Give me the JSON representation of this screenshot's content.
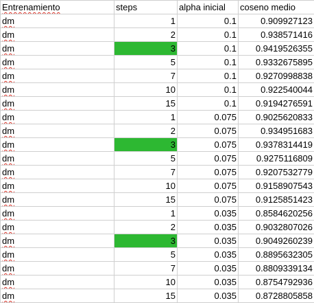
{
  "header": {
    "col1": "Entrenamiento",
    "col2": "steps",
    "col3": "alpha inicial",
    "col4": "coseno medio"
  },
  "highlight_color": "#2db832",
  "rows": [
    {
      "entrenamiento": "dm",
      "steps": "1",
      "alpha": "0.1",
      "coseno": "0.909927123",
      "highlight": false
    },
    {
      "entrenamiento": "dm",
      "steps": "2",
      "alpha": "0.1",
      "coseno": "0.938571416",
      "highlight": false
    },
    {
      "entrenamiento": "dm",
      "steps": "3",
      "alpha": "0.1",
      "coseno": "0.9419526355",
      "highlight": true
    },
    {
      "entrenamiento": "dm",
      "steps": "5",
      "alpha": "0.1",
      "coseno": "0.9332675895",
      "highlight": false
    },
    {
      "entrenamiento": "dm",
      "steps": "7",
      "alpha": "0.1",
      "coseno": "0.9270998838",
      "highlight": false
    },
    {
      "entrenamiento": "dm",
      "steps": "10",
      "alpha": "0.1",
      "coseno": "0.922540044",
      "highlight": false
    },
    {
      "entrenamiento": "dm",
      "steps": "15",
      "alpha": "0.1",
      "coseno": "0.9194276591",
      "highlight": false
    },
    {
      "entrenamiento": "dm",
      "steps": "1",
      "alpha": "0.075",
      "coseno": "0.9025620833",
      "highlight": false
    },
    {
      "entrenamiento": "dm",
      "steps": "2",
      "alpha": "0.075",
      "coseno": "0.934951683",
      "highlight": false
    },
    {
      "entrenamiento": "dm",
      "steps": "3",
      "alpha": "0.075",
      "coseno": "0.9378314419",
      "highlight": true
    },
    {
      "entrenamiento": "dm",
      "steps": "5",
      "alpha": "0.075",
      "coseno": "0.9275116809",
      "highlight": false
    },
    {
      "entrenamiento": "dm",
      "steps": "7",
      "alpha": "0.075",
      "coseno": "0.9207532779",
      "highlight": false
    },
    {
      "entrenamiento": "dm",
      "steps": "10",
      "alpha": "0.075",
      "coseno": "0.9158907543",
      "highlight": false
    },
    {
      "entrenamiento": "dm",
      "steps": "15",
      "alpha": "0.075",
      "coseno": "0.9125851423",
      "highlight": false
    },
    {
      "entrenamiento": "dm",
      "steps": "1",
      "alpha": "0.035",
      "coseno": "0.8584620256",
      "highlight": false
    },
    {
      "entrenamiento": "dm",
      "steps": "2",
      "alpha": "0.035",
      "coseno": "0.9032807026",
      "highlight": false
    },
    {
      "entrenamiento": "dm",
      "steps": "3",
      "alpha": "0.035",
      "coseno": "0.9049260239",
      "highlight": true
    },
    {
      "entrenamiento": "dm",
      "steps": "5",
      "alpha": "0.035",
      "coseno": "0.8895632305",
      "highlight": false
    },
    {
      "entrenamiento": "dm",
      "steps": "7",
      "alpha": "0.035",
      "coseno": "0.8809339134",
      "highlight": false
    },
    {
      "entrenamiento": "dm",
      "steps": "10",
      "alpha": "0.035",
      "coseno": "0.8754792936",
      "highlight": false
    },
    {
      "entrenamiento": "dm",
      "steps": "15",
      "alpha": "0.035",
      "coseno": "0.8728805858",
      "highlight": false
    }
  ]
}
